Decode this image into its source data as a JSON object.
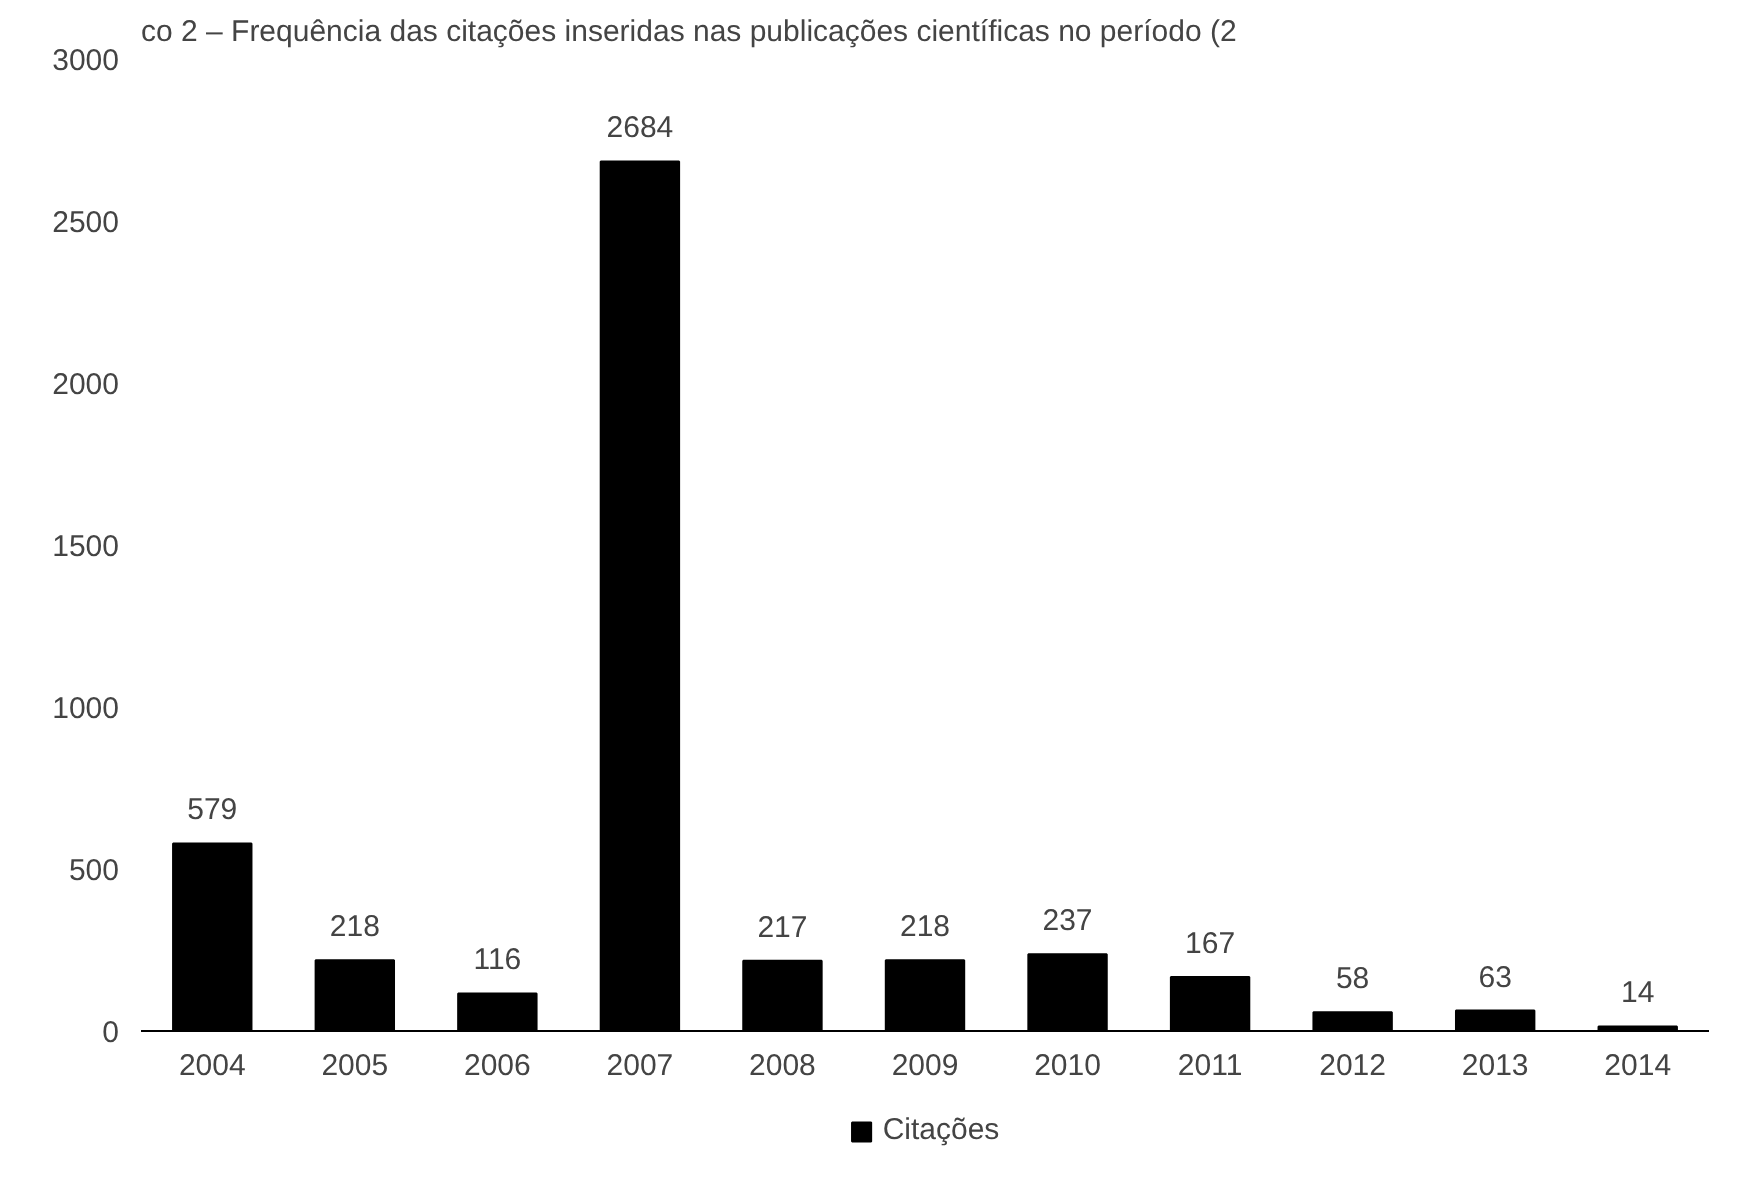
{
  "chart_data": {
    "type": "bar",
    "title": "co 2 – Frequência das citações inseridas nas publicações científicas no período (2",
    "categories": [
      "2004",
      "2005",
      "2006",
      "2007",
      "2008",
      "2009",
      "2010",
      "2011",
      "2012",
      "2013",
      "2014"
    ],
    "series": [
      {
        "name": "Citações",
        "color": "#000000",
        "values": [
          579,
          218,
          116,
          2684,
          217,
          218,
          237,
          167,
          58,
          63,
          14
        ]
      }
    ],
    "ylim": [
      0,
      3000
    ],
    "yticks": [
      0,
      500,
      1000,
      1500,
      2000,
      2500,
      3000
    ],
    "grid": false,
    "legend": "bottom",
    "data_labels": true
  }
}
